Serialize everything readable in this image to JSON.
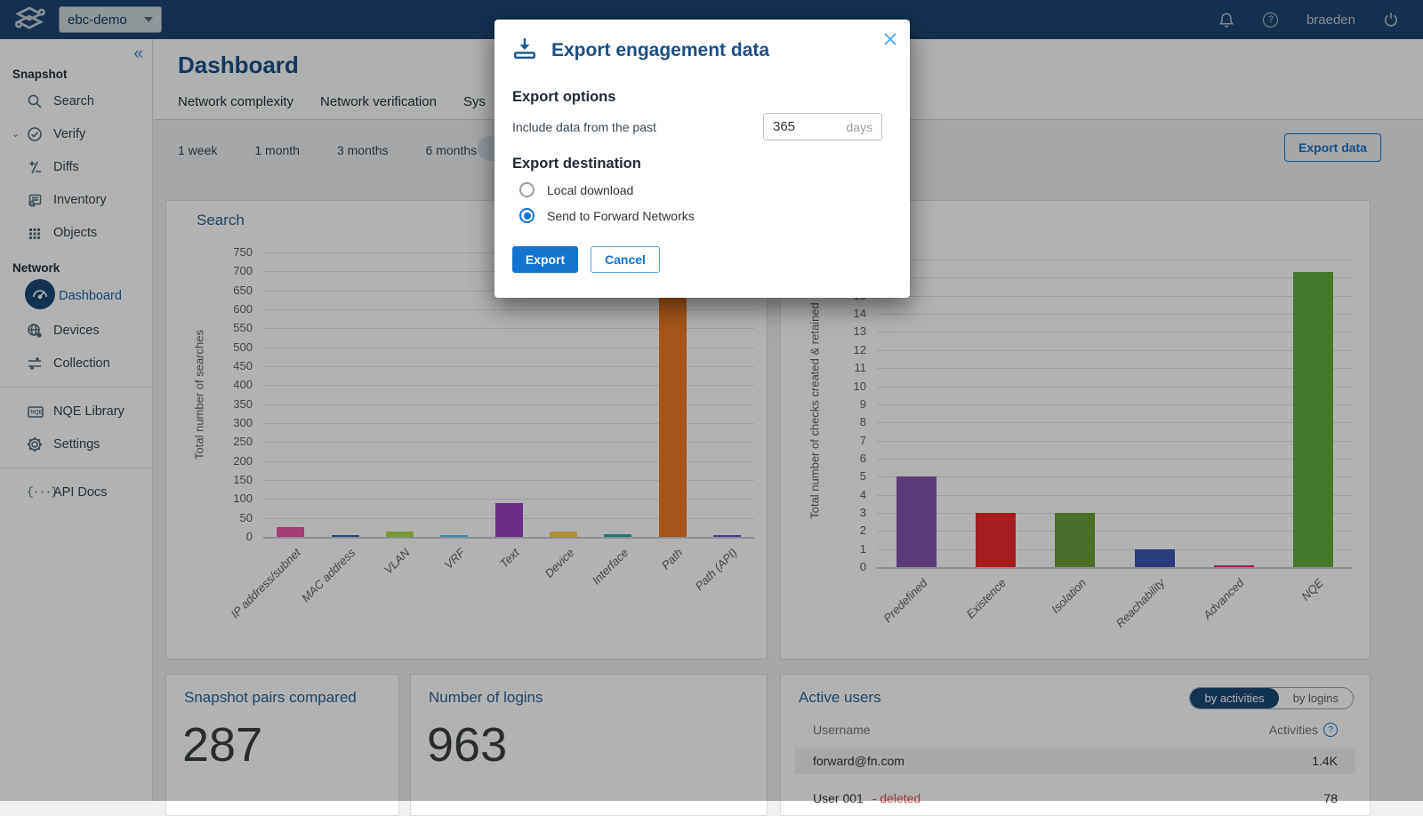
{
  "navbar": {
    "network_selector": "ebc-demo",
    "username": "braeden"
  },
  "sidebar": {
    "collapse_icon": "«",
    "sections": [
      {
        "label": "Snapshot",
        "items": [
          "Search",
          "Verify",
          "Diffs",
          "Inventory",
          "Objects"
        ]
      },
      {
        "label": "Network",
        "items": [
          "Dashboard",
          "Devices",
          "Collection"
        ]
      }
    ],
    "tools": [
      "NQE Library",
      "Settings"
    ],
    "docs": [
      "API Docs"
    ],
    "active_item": "Dashboard"
  },
  "header": {
    "title": "Dashboard",
    "tabs": [
      "Network complexity",
      "Network verification",
      "Sys"
    ]
  },
  "toolbar": {
    "time_ranges": [
      "1 week",
      "1 month",
      "3 months",
      "6 months"
    ],
    "export_label": "Export data"
  },
  "modal": {
    "title": "Export engagement data",
    "options_heading": "Export options",
    "days_label": "Include data from the past",
    "days_value": "365",
    "days_unit": "days",
    "destination_heading": "Export destination",
    "destinations": [
      {
        "label": "Local download",
        "selected": false
      },
      {
        "label": "Send to Forward Networks",
        "selected": true
      }
    ],
    "export_label": "Export",
    "cancel_label": "Cancel"
  },
  "chart_data": [
    {
      "type": "bar",
      "title": "Search",
      "ylabel": "Total number of searches",
      "categories": [
        "IP address/subnet",
        "MAC address",
        "VLAN",
        "VRF",
        "Text",
        "Device",
        "Interface",
        "Path",
        "Path (API)"
      ],
      "values": [
        25,
        5,
        15,
        4,
        90,
        15,
        6,
        700,
        5
      ],
      "colors": [
        "#ed57a3",
        "#3f6eb4",
        "#aedc49",
        "#5ac2f6",
        "#9942c0",
        "#ffcf4d",
        "#38ab97",
        "#ec7a25",
        "#7157cc"
      ],
      "ylim": [
        0,
        750
      ],
      "ytick": 50,
      "grid": true,
      "legend": "none"
    },
    {
      "type": "bar",
      "ylabel": "Total number of checks created & retained",
      "categories": [
        "Predefined",
        "Existence",
        "Isolation",
        "Reachability",
        "Advanced",
        "NQE"
      ],
      "values": [
        5,
        3,
        3,
        1,
        0.1,
        16.3
      ],
      "colors": [
        "#8357ad",
        "#ed2c2c",
        "#6a9d3c",
        "#3f58b4",
        "#e9258f",
        "#65ad40"
      ],
      "ylim": [
        0,
        17.3
      ],
      "ytick": 1,
      "grid": true,
      "legend": "none"
    }
  ],
  "cards": {
    "snapshot_pairs": {
      "title": "Snapshot pairs compared",
      "value": "287"
    },
    "logins": {
      "title": "Number of logins",
      "value": "963"
    },
    "active_users": {
      "title": "Active users",
      "toggle": [
        {
          "label": "by activities",
          "active": true
        },
        {
          "label": "by logins",
          "active": false
        }
      ],
      "columns": [
        "Username",
        "Activities"
      ],
      "rows": [
        {
          "username": "forward@fn.com",
          "activities": "1.4K",
          "flag": ""
        },
        {
          "username": "User 001",
          "activities": "78",
          "flag": "- deleted"
        }
      ]
    }
  },
  "colors": {
    "navbar_bg": "#1e4670",
    "accent_blue": "#1274cc",
    "title_blue": "#1b4f87",
    "link_blue": "#1a73c8",
    "active_pill_bg": "#1b4a73",
    "deleted_red": "#d9534f"
  }
}
